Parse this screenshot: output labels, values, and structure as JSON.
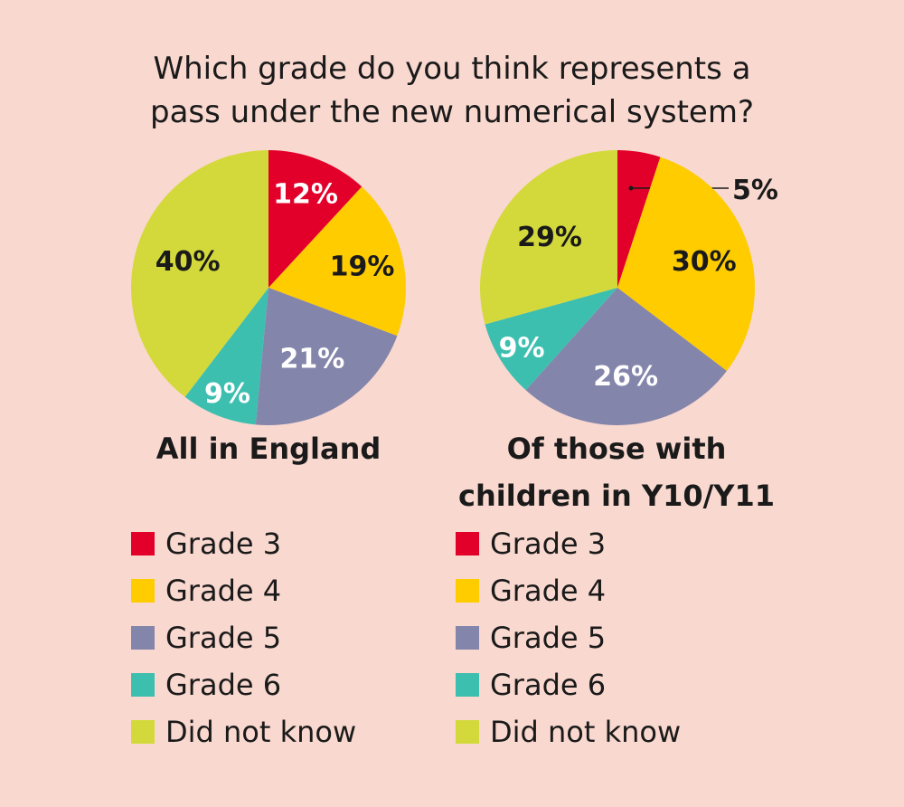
{
  "title_lines": [
    "Which grade do you think represents a",
    "pass under the new numerical system?"
  ],
  "colors": {
    "Grade 3": "#e2002a",
    "Grade 4": "#ffcc00",
    "Grade 5": "#8485ab",
    "Grade 6": "#3dbfb0",
    "Did not know": "#d3d93a"
  },
  "chart_data": [
    {
      "type": "pie",
      "title": "All in England",
      "categories": [
        "Grade 3",
        "Grade 4",
        "Grade 5",
        "Grade 6",
        "Did not know"
      ],
      "values": [
        12,
        19,
        21,
        9,
        40
      ],
      "labels": [
        "12%",
        "19%",
        "21%",
        "9%",
        "40%"
      ],
      "legend": [
        "Grade 3",
        "Grade 4",
        "Grade 5",
        "Grade 6",
        "Did not know"
      ]
    },
    {
      "type": "pie",
      "title": "Of those with children in Y10/Y11",
      "title_lines": [
        "Of those with",
        "children in Y10/Y11"
      ],
      "categories": [
        "Grade 3",
        "Grade 4",
        "Grade 5",
        "Grade 6",
        "Did not know"
      ],
      "values": [
        5,
        30,
        26,
        9,
        29
      ],
      "labels": [
        "5%",
        "30%",
        "26%",
        "9%",
        "29%"
      ],
      "legend": [
        "Grade 3",
        "Grade 4",
        "Grade 5",
        "Grade 6",
        "Did not know"
      ]
    }
  ]
}
